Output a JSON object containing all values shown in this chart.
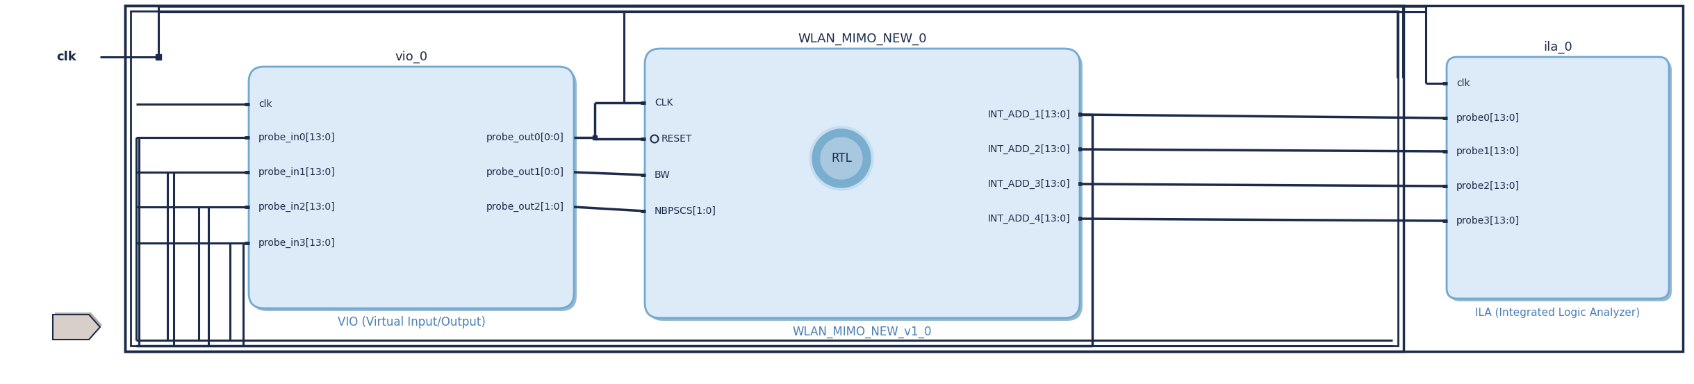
{
  "bg_color": "#ffffff",
  "dark_navy": "#1c2b4a",
  "blue_box_fill": "#ddeaf7",
  "blue_box_edge": "#6fa8d0",
  "blue_box_shadow": "#9ab8cc",
  "label_blue": "#4a7fb5",
  "text_dark": "#1c2b4a",
  "wire_color": "#1c2b4a",
  "vio_title": "vio_0",
  "vio_caption": "VIO (Virtual Input/Output)",
  "vio_inputs": [
    "clk",
    "probe_in0[13:0]",
    "probe_in1[13:0]",
    "probe_in2[13:0]",
    "probe_in3[13:0]"
  ],
  "vio_outputs": [
    "probe_out0[0:0]",
    "probe_out1[0:0]",
    "probe_out2[1:0]"
  ],
  "wlan_title": "WLAN_MIMO_NEW_0",
  "wlan_caption": "WLAN_MIMO_NEW_v1_0",
  "wlan_inputs": [
    "CLK",
    "RESET",
    "BW",
    "NBPSCS[1:0]"
  ],
  "wlan_outputs": [
    "INT_ADD_1[13:0]",
    "INT_ADD_2[13:0]",
    "INT_ADD_3[13:0]",
    "INT_ADD_4[13:0]"
  ],
  "wlan_rtl": "RTL",
  "ila_title": "ila_0",
  "ila_caption": "ILA (Integrated Logic Analyzer)",
  "ila_inputs": [
    "clk",
    "probe0[13:0]",
    "probe1[13:0]",
    "probe2[13:0]",
    "probe3[13:0]"
  ]
}
